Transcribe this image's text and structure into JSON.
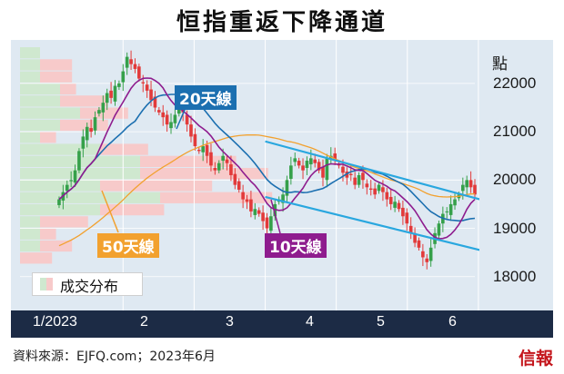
{
  "header": {
    "title": "恒指重返下降通道"
  },
  "footer": {
    "source": "資料來源：EJFQ.com；2023年6月",
    "brand": "信報"
  },
  "chart_data": {
    "type": "candlestick",
    "title": "恒指重返下降通道",
    "ylabel": "點",
    "ylim": [
      17300,
      22900
    ],
    "yticks": [
      18000,
      19000,
      20000,
      21000,
      22000
    ],
    "xticks": [
      "1/2023",
      "2",
      "3",
      "4",
      "5",
      "6"
    ],
    "legend": {
      "volume_profile": "成交分布"
    },
    "series": [
      {
        "name": "10天線",
        "color": "#8e1c8e"
      },
      {
        "name": "20天線",
        "color": "#1b6fb0"
      },
      {
        "name": "50天線",
        "color": "#f2a12f"
      }
    ],
    "colors": {
      "up": "#35a04a",
      "down": "#e23a3a",
      "channel": "#29a7df",
      "profile_green": "#cfe8cf",
      "profile_red": "#f7caca"
    },
    "daily_close": [
      19600,
      19750,
      19900,
      20000,
      20200,
      20600,
      20900,
      21100,
      21000,
      21300,
      21450,
      21600,
      21800,
      21700,
      21950,
      22000,
      22250,
      22550,
      22400,
      22300,
      22100,
      22000,
      21850,
      21650,
      21500,
      21400,
      21300,
      21150,
      21200,
      21350,
      21500,
      21400,
      21150,
      20900,
      20700,
      20600,
      20700,
      20500,
      20300,
      20200,
      20350,
      20500,
      20350,
      20100,
      19900,
      19800,
      19600,
      19550,
      19350,
      19400,
      19300,
      19150,
      19000,
      19250,
      19500,
      19600,
      19700,
      20000,
      20300,
      20450,
      20300,
      20200,
      20400,
      20450,
      20350,
      20200,
      20050,
      20450,
      20500,
      20400,
      20300,
      20150,
      20050,
      20100,
      19900,
      20100,
      20000,
      19850,
      19800,
      19700,
      19900,
      19750,
      19600,
      19500,
      19550,
      19400,
      19250,
      19100,
      18900,
      18700,
      18600,
      18400,
      18300,
      18600,
      18900,
      19100,
      19300,
      19350,
      19500,
      19600,
      19700,
      19900,
      20000,
      19850,
      19700
    ],
    "channel": {
      "upper": [
        [
          3.0,
          20800
        ],
        [
          6.02,
          19600
        ]
      ],
      "lower": [
        [
          3.0,
          19650
        ],
        [
          6.02,
          18550
        ]
      ]
    },
    "annotations": [
      "20天線",
      "50天線",
      "10天線"
    ]
  }
}
